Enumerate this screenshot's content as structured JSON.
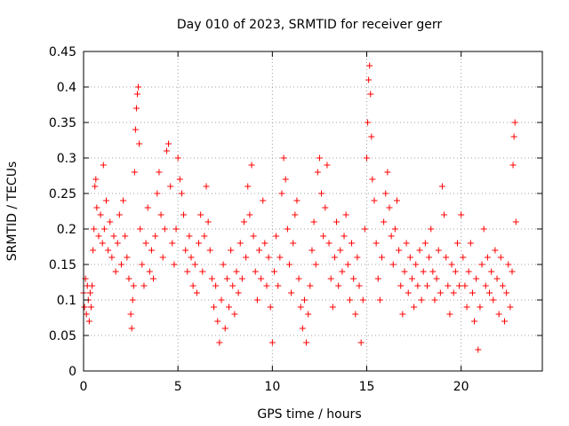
{
  "chart_data": {
    "type": "scatter",
    "title": "Day 010 of 2023, SRMTID for receiver gerr",
    "xlabel": "GPS time / hours",
    "ylabel": "SRMTID / TECUs",
    "xlim": [
      0,
      24.3
    ],
    "ylim": [
      0,
      0.45
    ],
    "xticks": [
      0,
      5,
      10,
      15,
      20
    ],
    "yticks": [
      0,
      0.05,
      0.1,
      0.15,
      0.2,
      0.25,
      0.3,
      0.35,
      0.4,
      0.45
    ],
    "grid": true,
    "marker": "+",
    "color": "#ff0000",
    "series": [
      {
        "name": "SRMTID",
        "points": [
          [
            0.0,
            0.11
          ],
          [
            0.05,
            0.09
          ],
          [
            0.1,
            0.13
          ],
          [
            0.15,
            0.08
          ],
          [
            0.2,
            0.12
          ],
          [
            0.25,
            0.1
          ],
          [
            0.3,
            0.07
          ],
          [
            0.35,
            0.11
          ],
          [
            0.4,
            0.09
          ],
          [
            0.45,
            0.12
          ],
          [
            0.5,
            0.17
          ],
          [
            0.55,
            0.2
          ],
          [
            0.6,
            0.26
          ],
          [
            0.65,
            0.27
          ],
          [
            0.7,
            0.23
          ],
          [
            0.8,
            0.19
          ],
          [
            0.9,
            0.22
          ],
          [
            1.0,
            0.18
          ],
          [
            1.05,
            0.29
          ],
          [
            1.1,
            0.2
          ],
          [
            1.2,
            0.24
          ],
          [
            1.3,
            0.17
          ],
          [
            1.4,
            0.21
          ],
          [
            1.5,
            0.16
          ],
          [
            1.6,
            0.19
          ],
          [
            1.7,
            0.14
          ],
          [
            1.8,
            0.18
          ],
          [
            1.9,
            0.22
          ],
          [
            2.0,
            0.15
          ],
          [
            2.1,
            0.24
          ],
          [
            2.2,
            0.19
          ],
          [
            2.3,
            0.16
          ],
          [
            2.4,
            0.13
          ],
          [
            2.5,
            0.08
          ],
          [
            2.55,
            0.06
          ],
          [
            2.6,
            0.1
          ],
          [
            2.65,
            0.12
          ],
          [
            2.7,
            0.28
          ],
          [
            2.75,
            0.34
          ],
          [
            2.8,
            0.37
          ],
          [
            2.85,
            0.39
          ],
          [
            2.9,
            0.4
          ],
          [
            2.95,
            0.32
          ],
          [
            3.0,
            0.2
          ],
          [
            3.1,
            0.15
          ],
          [
            3.2,
            0.12
          ],
          [
            3.3,
            0.18
          ],
          [
            3.4,
            0.23
          ],
          [
            3.5,
            0.14
          ],
          [
            3.6,
            0.17
          ],
          [
            3.7,
            0.13
          ],
          [
            3.8,
            0.19
          ],
          [
            3.9,
            0.25
          ],
          [
            4.0,
            0.28
          ],
          [
            4.1,
            0.22
          ],
          [
            4.2,
            0.16
          ],
          [
            4.3,
            0.2
          ],
          [
            4.4,
            0.31
          ],
          [
            4.5,
            0.32
          ],
          [
            4.6,
            0.26
          ],
          [
            4.7,
            0.18
          ],
          [
            4.8,
            0.15
          ],
          [
            4.9,
            0.2
          ],
          [
            5.0,
            0.3
          ],
          [
            5.1,
            0.27
          ],
          [
            5.2,
            0.25
          ],
          [
            5.3,
            0.22
          ],
          [
            5.4,
            0.17
          ],
          [
            5.5,
            0.14
          ],
          [
            5.6,
            0.19
          ],
          [
            5.7,
            0.16
          ],
          [
            5.8,
            0.12
          ],
          [
            5.9,
            0.15
          ],
          [
            6.0,
            0.11
          ],
          [
            6.1,
            0.18
          ],
          [
            6.2,
            0.22
          ],
          [
            6.3,
            0.14
          ],
          [
            6.4,
            0.19
          ],
          [
            6.5,
            0.26
          ],
          [
            6.6,
            0.21
          ],
          [
            6.7,
            0.17
          ],
          [
            6.8,
            0.13
          ],
          [
            6.9,
            0.09
          ],
          [
            7.0,
            0.12
          ],
          [
            7.1,
            0.07
          ],
          [
            7.2,
            0.04
          ],
          [
            7.3,
            0.1
          ],
          [
            7.4,
            0.15
          ],
          [
            7.5,
            0.06
          ],
          [
            7.6,
            0.13
          ],
          [
            7.7,
            0.09
          ],
          [
            7.8,
            0.17
          ],
          [
            7.9,
            0.12
          ],
          [
            8.0,
            0.08
          ],
          [
            8.1,
            0.14
          ],
          [
            8.2,
            0.11
          ],
          [
            8.3,
            0.18
          ],
          [
            8.4,
            0.13
          ],
          [
            8.5,
            0.21
          ],
          [
            8.6,
            0.16
          ],
          [
            8.7,
            0.26
          ],
          [
            8.8,
            0.22
          ],
          [
            8.9,
            0.29
          ],
          [
            9.0,
            0.19
          ],
          [
            9.1,
            0.14
          ],
          [
            9.2,
            0.1
          ],
          [
            9.3,
            0.17
          ],
          [
            9.4,
            0.13
          ],
          [
            9.5,
            0.24
          ],
          [
            9.6,
            0.18
          ],
          [
            9.7,
            0.12
          ],
          [
            9.8,
            0.16
          ],
          [
            9.9,
            0.09
          ],
          [
            10.0,
            0.04
          ],
          [
            10.1,
            0.14
          ],
          [
            10.2,
            0.19
          ],
          [
            10.3,
            0.12
          ],
          [
            10.4,
            0.16
          ],
          [
            10.5,
            0.25
          ],
          [
            10.6,
            0.3
          ],
          [
            10.7,
            0.27
          ],
          [
            10.8,
            0.2
          ],
          [
            10.9,
            0.15
          ],
          [
            11.0,
            0.11
          ],
          [
            11.1,
            0.18
          ],
          [
            11.2,
            0.22
          ],
          [
            11.3,
            0.24
          ],
          [
            11.4,
            0.13
          ],
          [
            11.5,
            0.09
          ],
          [
            11.6,
            0.06
          ],
          [
            11.7,
            0.1
          ],
          [
            11.8,
            0.04
          ],
          [
            11.9,
            0.08
          ],
          [
            12.0,
            0.12
          ],
          [
            12.1,
            0.17
          ],
          [
            12.2,
            0.21
          ],
          [
            12.3,
            0.15
          ],
          [
            12.4,
            0.28
          ],
          [
            12.5,
            0.3
          ],
          [
            12.6,
            0.25
          ],
          [
            12.7,
            0.19
          ],
          [
            12.8,
            0.23
          ],
          [
            12.9,
            0.29
          ],
          [
            13.0,
            0.18
          ],
          [
            13.1,
            0.13
          ],
          [
            13.2,
            0.09
          ],
          [
            13.3,
            0.16
          ],
          [
            13.4,
            0.21
          ],
          [
            13.5,
            0.12
          ],
          [
            13.6,
            0.17
          ],
          [
            13.7,
            0.14
          ],
          [
            13.8,
            0.19
          ],
          [
            13.9,
            0.22
          ],
          [
            14.0,
            0.15
          ],
          [
            14.1,
            0.1
          ],
          [
            14.2,
            0.18
          ],
          [
            14.3,
            0.13
          ],
          [
            14.4,
            0.08
          ],
          [
            14.5,
            0.16
          ],
          [
            14.6,
            0.12
          ],
          [
            14.7,
            0.04
          ],
          [
            14.8,
            0.1
          ],
          [
            14.9,
            0.2
          ],
          [
            15.0,
            0.3
          ],
          [
            15.05,
            0.35
          ],
          [
            15.1,
            0.41
          ],
          [
            15.15,
            0.43
          ],
          [
            15.2,
            0.39
          ],
          [
            15.25,
            0.33
          ],
          [
            15.3,
            0.27
          ],
          [
            15.4,
            0.24
          ],
          [
            15.5,
            0.18
          ],
          [
            15.6,
            0.13
          ],
          [
            15.7,
            0.1
          ],
          [
            15.8,
            0.16
          ],
          [
            15.9,
            0.21
          ],
          [
            16.0,
            0.25
          ],
          [
            16.1,
            0.28
          ],
          [
            16.2,
            0.23
          ],
          [
            16.3,
            0.19
          ],
          [
            16.4,
            0.15
          ],
          [
            16.5,
            0.2
          ],
          [
            16.6,
            0.24
          ],
          [
            16.7,
            0.17
          ],
          [
            16.8,
            0.12
          ],
          [
            16.9,
            0.08
          ],
          [
            17.0,
            0.14
          ],
          [
            17.1,
            0.18
          ],
          [
            17.2,
            0.11
          ],
          [
            17.3,
            0.16
          ],
          [
            17.4,
            0.13
          ],
          [
            17.5,
            0.09
          ],
          [
            17.6,
            0.15
          ],
          [
            17.7,
            0.12
          ],
          [
            17.8,
            0.17
          ],
          [
            17.9,
            0.1
          ],
          [
            18.0,
            0.14
          ],
          [
            18.1,
            0.18
          ],
          [
            18.2,
            0.12
          ],
          [
            18.3,
            0.16
          ],
          [
            18.4,
            0.2
          ],
          [
            18.5,
            0.14
          ],
          [
            18.6,
            0.1
          ],
          [
            18.7,
            0.13
          ],
          [
            18.8,
            0.17
          ],
          [
            18.9,
            0.11
          ],
          [
            19.0,
            0.26
          ],
          [
            19.1,
            0.22
          ],
          [
            19.2,
            0.16
          ],
          [
            19.3,
            0.12
          ],
          [
            19.4,
            0.08
          ],
          [
            19.5,
            0.15
          ],
          [
            19.6,
            0.11
          ],
          [
            19.7,
            0.14
          ],
          [
            19.8,
            0.18
          ],
          [
            19.9,
            0.12
          ],
          [
            20.0,
            0.22
          ],
          [
            20.1,
            0.16
          ],
          [
            20.2,
            0.12
          ],
          [
            20.3,
            0.09
          ],
          [
            20.4,
            0.14
          ],
          [
            20.5,
            0.18
          ],
          [
            20.6,
            0.11
          ],
          [
            20.7,
            0.07
          ],
          [
            20.8,
            0.13
          ],
          [
            20.9,
            0.03
          ],
          [
            21.0,
            0.09
          ],
          [
            21.1,
            0.15
          ],
          [
            21.2,
            0.2
          ],
          [
            21.3,
            0.12
          ],
          [
            21.4,
            0.16
          ],
          [
            21.5,
            0.11
          ],
          [
            21.6,
            0.14
          ],
          [
            21.7,
            0.1
          ],
          [
            21.8,
            0.17
          ],
          [
            21.9,
            0.13
          ],
          [
            22.0,
            0.08
          ],
          [
            22.1,
            0.16
          ],
          [
            22.2,
            0.12
          ],
          [
            22.3,
            0.07
          ],
          [
            22.4,
            0.11
          ],
          [
            22.5,
            0.15
          ],
          [
            22.6,
            0.09
          ],
          [
            22.7,
            0.14
          ],
          [
            22.75,
            0.29
          ],
          [
            22.8,
            0.33
          ],
          [
            22.85,
            0.35
          ],
          [
            22.9,
            0.21
          ]
        ]
      }
    ]
  }
}
